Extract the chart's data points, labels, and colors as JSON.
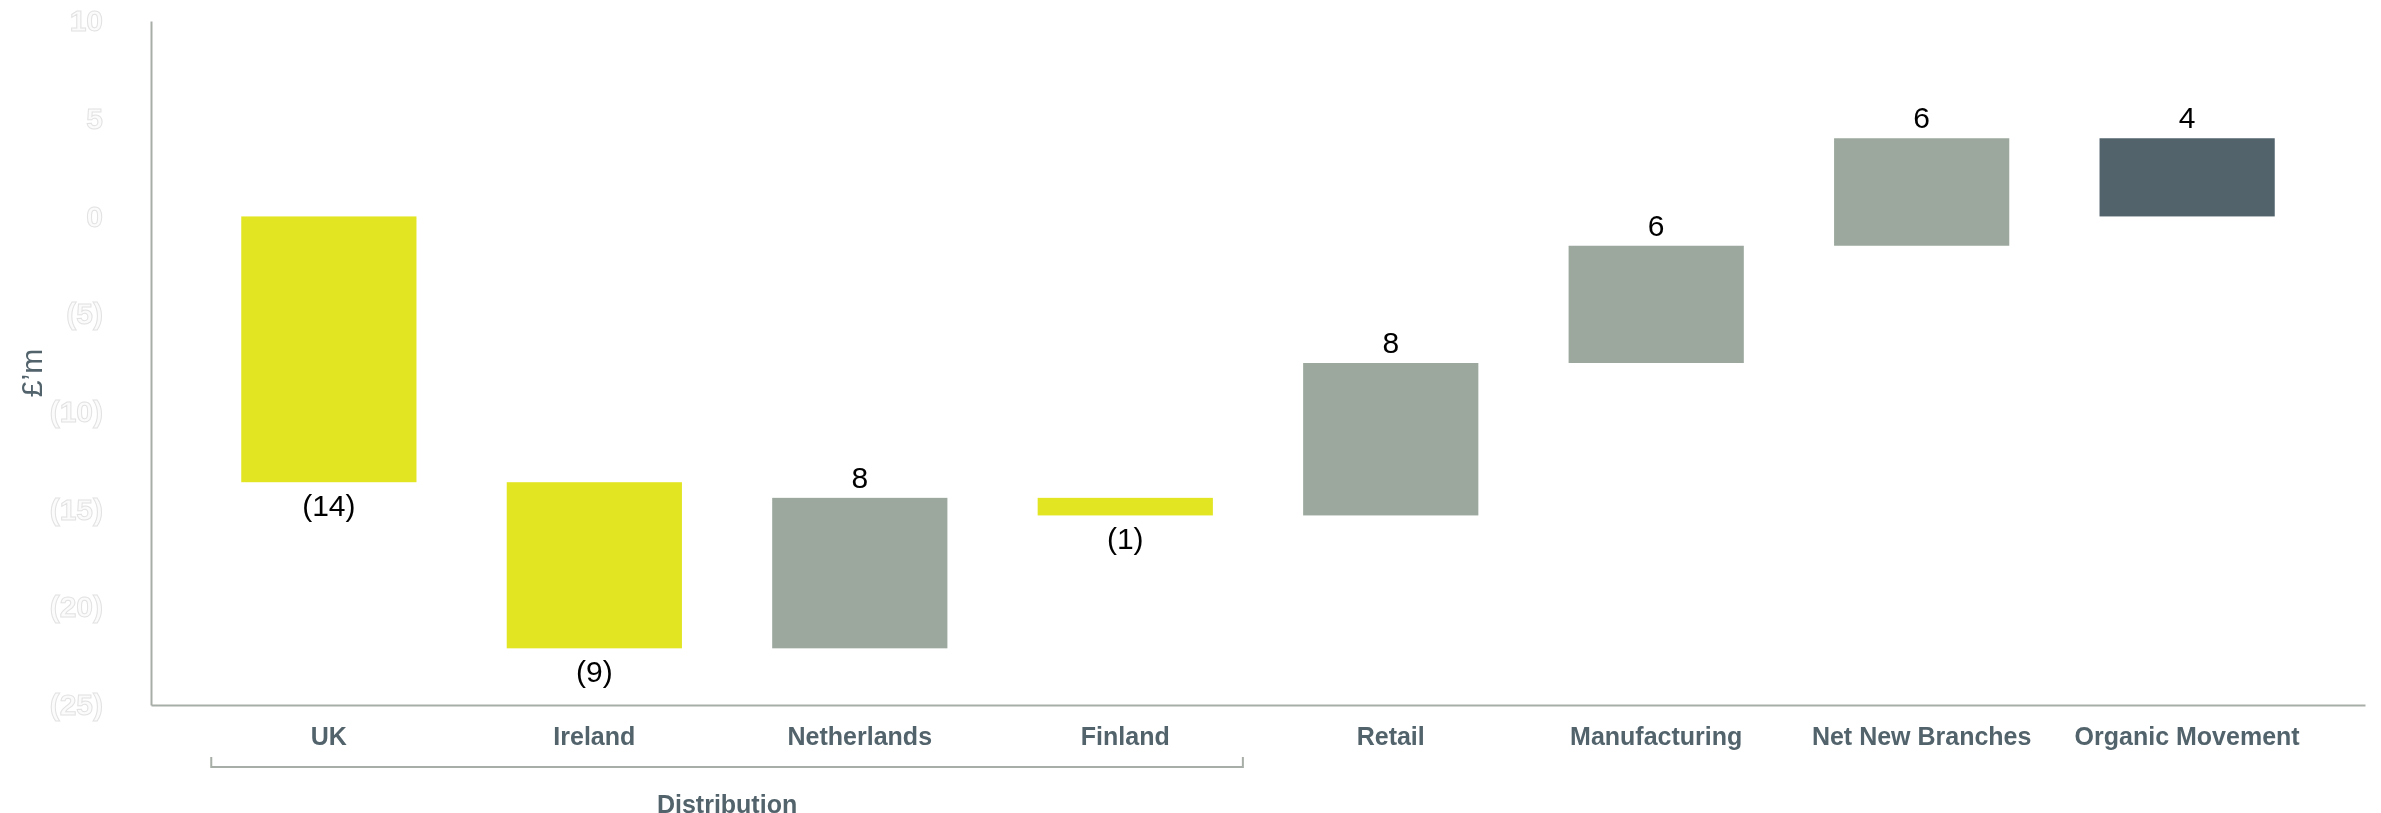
{
  "chart_data": {
    "type": "bar",
    "ylabel": "£’m",
    "categories": [
      "UK",
      "Ireland",
      "Netherlands",
      "Finland",
      "Retail",
      "Manufacturing",
      "Net New Branches",
      "Organic Movement"
    ],
    "base": [
      0,
      -13.6,
      -22.1,
      -14.4,
      -15.3,
      -7.5,
      -1.5,
      0
    ],
    "values": [
      -13.6,
      -8.5,
      7.7,
      -0.9,
      7.8,
      6.0,
      5.5,
      4
    ],
    "colors": [
      "#e2e521",
      "#e2e521",
      "#9ca89e",
      "#e2e521",
      "#9ca89e",
      "#9ca89e",
      "#9ca89e",
      "#52636c"
    ],
    "value_labels": [
      "(14)",
      "(9)",
      "8",
      "(1)",
      "8",
      "6",
      "6",
      "4"
    ],
    "ylim": [
      -25,
      10
    ],
    "yticks": [
      {
        "value": 10,
        "label": "10"
      },
      {
        "value": 5,
        "label": "5"
      },
      {
        "value": 0,
        "label": "0"
      },
      {
        "value": -5,
        "label": "(5)"
      },
      {
        "value": -10,
        "label": "(10)"
      },
      {
        "value": -15,
        "label": "(15)"
      },
      {
        "value": -20,
        "label": "(20)"
      },
      {
        "value": -25,
        "label": "(25)"
      }
    ],
    "grid": false,
    "annotations": [
      "Distribution"
    ]
  }
}
